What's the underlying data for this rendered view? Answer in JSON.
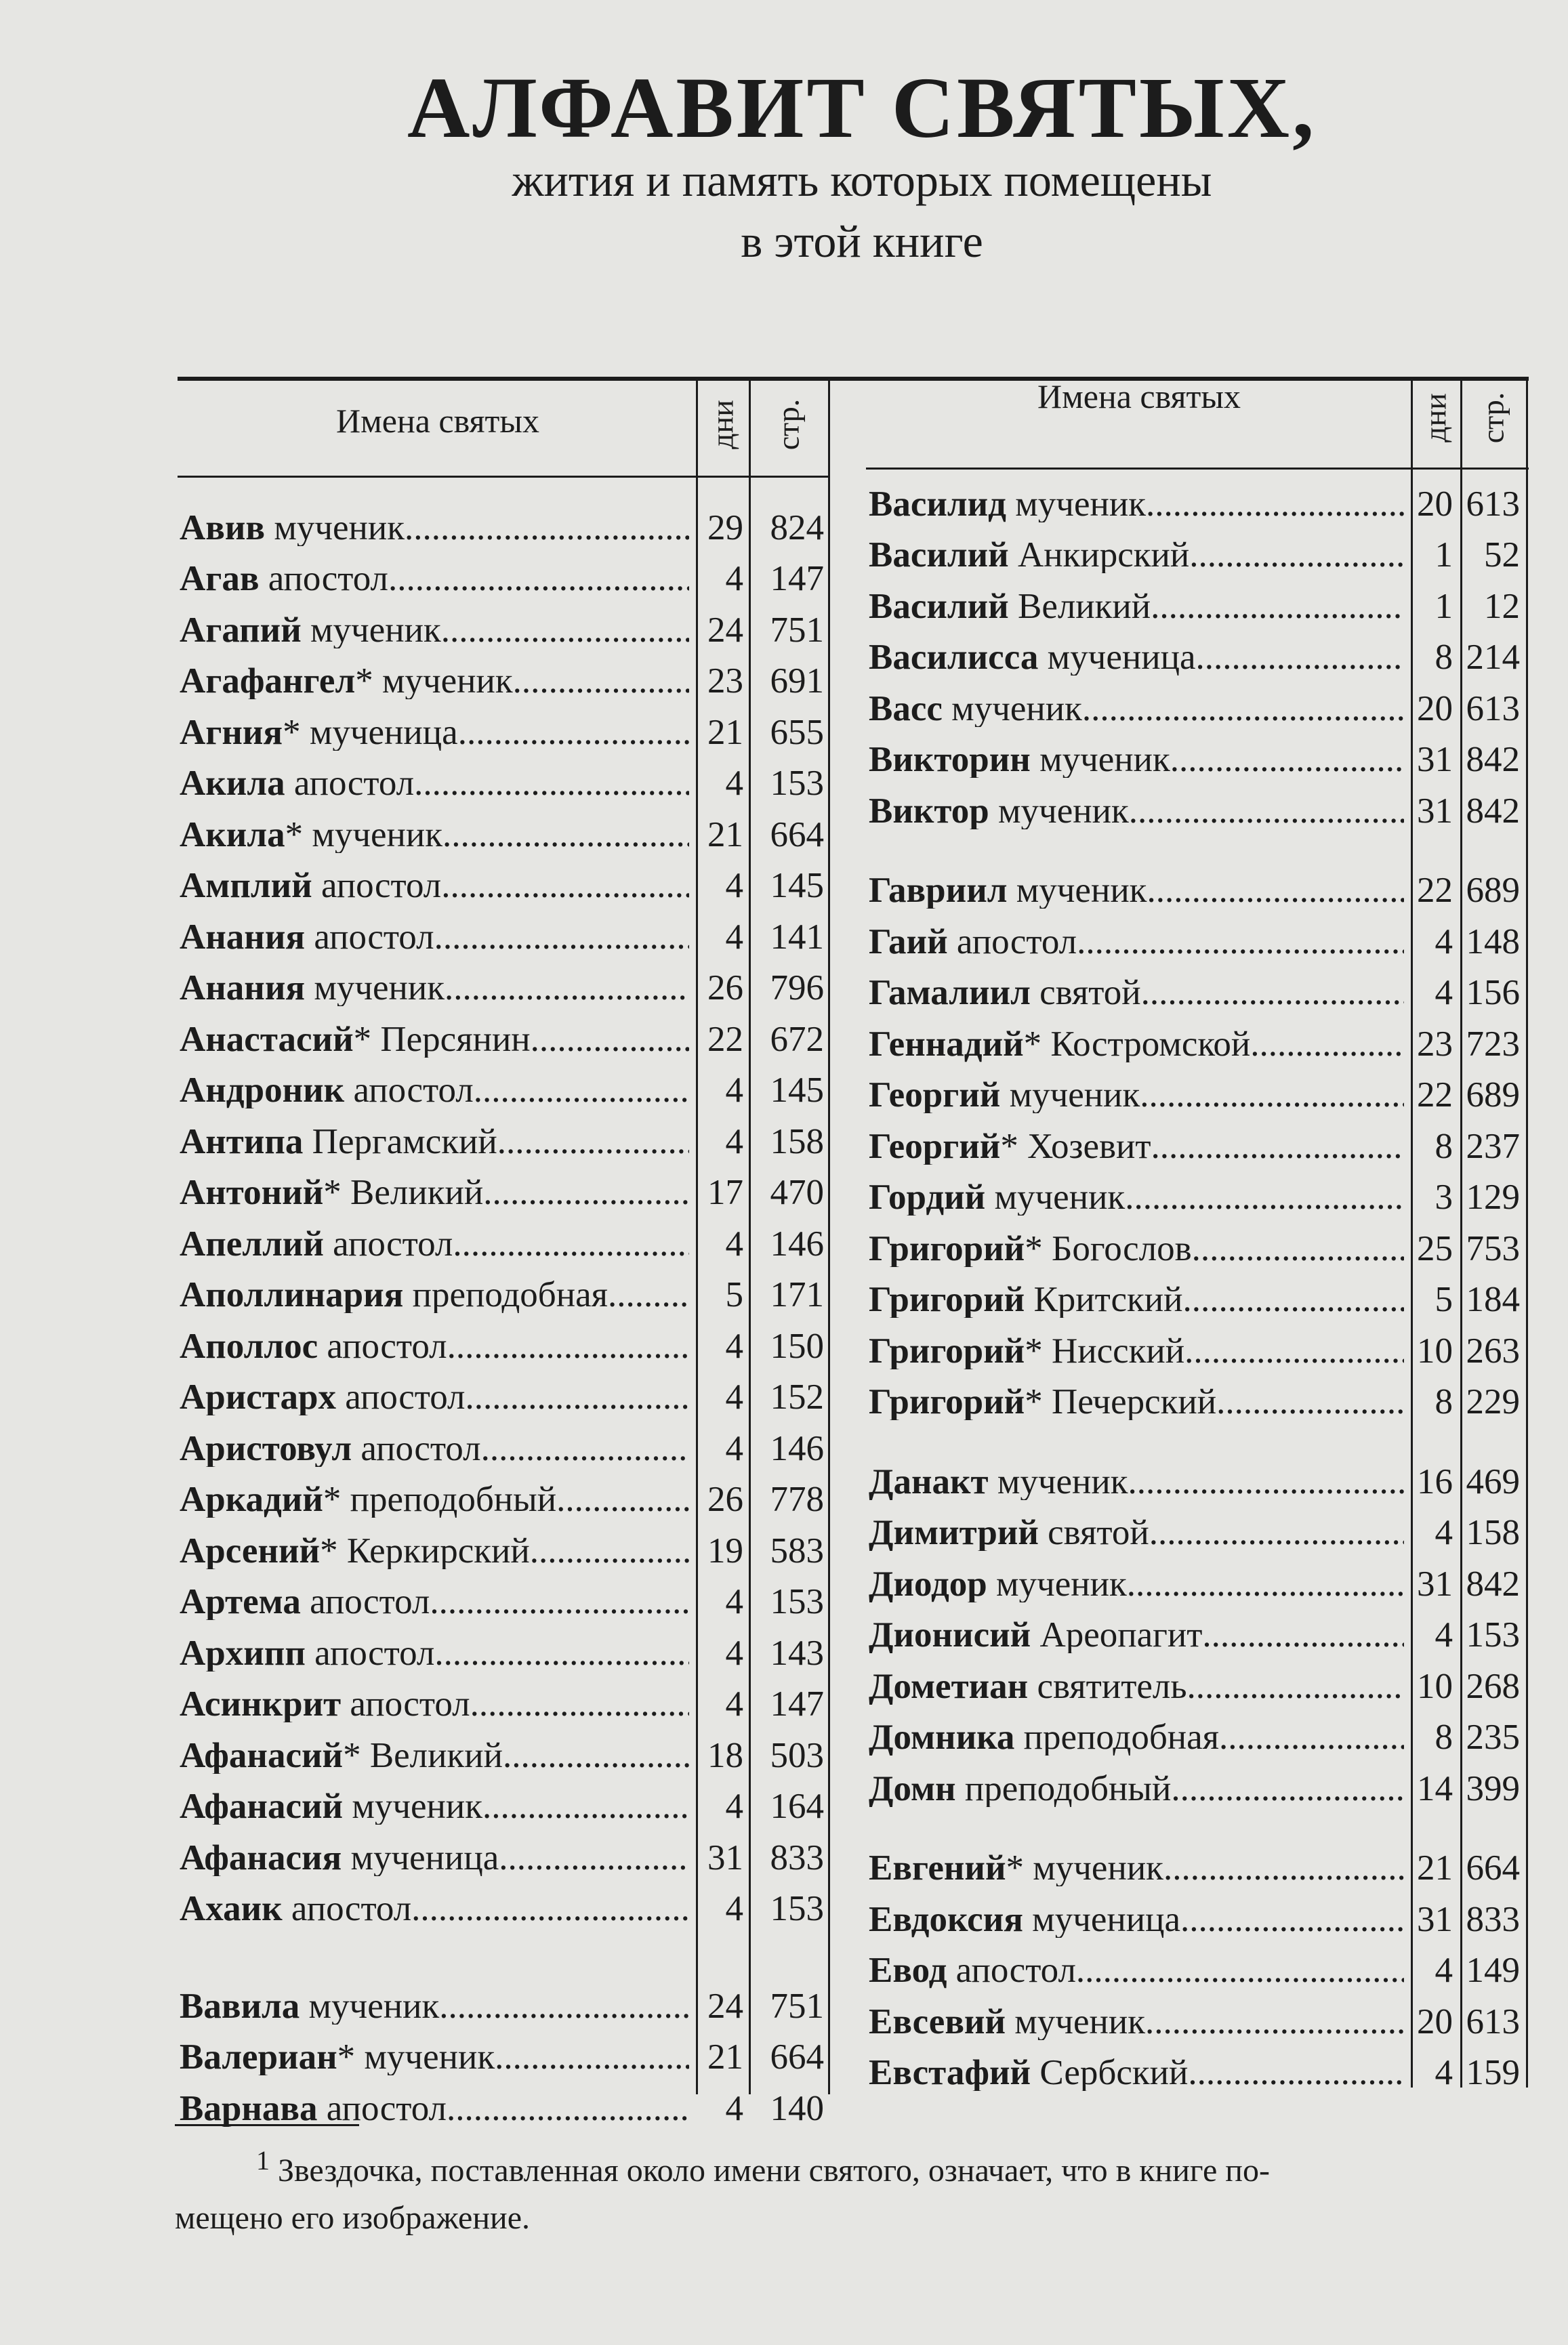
{
  "title": "АЛФАВИТ СВЯТЫХ,",
  "subtitle_line1": "жития и память которых помещены",
  "subtitle_line2": "в этой книге",
  "table_headers": {
    "name": "Имена святых",
    "day": "дни",
    "page": "стр."
  },
  "left_column": [
    [
      {
        "name": "Авив",
        "mark": "",
        "title": "мученик",
        "day": "29",
        "page": "824"
      },
      {
        "name": "Агав",
        "mark": "",
        "title": "апостол",
        "day": "4",
        "page": "147"
      },
      {
        "name": "Агапий",
        "mark": "",
        "title": "мученик",
        "day": "24",
        "page": "751"
      },
      {
        "name": "Агафангел",
        "mark": "*",
        "title": "мученик",
        "day": "23",
        "page": "691"
      },
      {
        "name": "Агния",
        "mark": "*",
        "title": "мученица",
        "day": "21",
        "page": "655"
      },
      {
        "name": "Акила",
        "mark": "",
        "title": "апостол",
        "day": "4",
        "page": "153"
      },
      {
        "name": "Акила",
        "mark": "*",
        "title": "мученик",
        "day": "21",
        "page": "664"
      },
      {
        "name": "Амплий",
        "mark": "",
        "title": "апостол",
        "day": "4",
        "page": "145"
      },
      {
        "name": "Анания",
        "mark": "",
        "title": "апостол",
        "day": "4",
        "page": "141"
      },
      {
        "name": "Анания",
        "mark": "",
        "title": "мученик",
        "day": "26",
        "page": "796"
      },
      {
        "name": "Анастасий",
        "mark": "*",
        "title": "Персянин",
        "day": "22",
        "page": "672"
      },
      {
        "name": "Андроник",
        "mark": "",
        "title": "апостол",
        "day": "4",
        "page": "145"
      },
      {
        "name": "Антипа",
        "mark": "",
        "title": "Пергамский",
        "day": "4",
        "page": "158"
      },
      {
        "name": "Антоний",
        "mark": "*",
        "title": "Великий",
        "day": "17",
        "page": "470"
      },
      {
        "name": "Апеллий",
        "mark": "",
        "title": "апостол",
        "day": "4",
        "page": "146"
      },
      {
        "name": "Аполлинария",
        "mark": "",
        "title": "преподобная",
        "day": "5",
        "page": "171"
      },
      {
        "name": "Аполлос",
        "mark": "",
        "title": "апостол",
        "day": "4",
        "page": "150"
      },
      {
        "name": "Аристарх",
        "mark": "",
        "title": "апостол",
        "day": "4",
        "page": "152"
      },
      {
        "name": "Аристовул",
        "mark": "",
        "title": "апостол",
        "day": "4",
        "page": "146"
      },
      {
        "name": "Аркадий",
        "mark": "*",
        "title": "преподобный",
        "day": "26",
        "page": "778"
      },
      {
        "name": "Арсений",
        "mark": "*",
        "title": "Керкирский",
        "day": "19",
        "page": "583"
      },
      {
        "name": "Артема",
        "mark": "",
        "title": "апостол",
        "day": "4",
        "page": "153"
      },
      {
        "name": "Архипп",
        "mark": "",
        "title": "апостол",
        "day": "4",
        "page": "143"
      },
      {
        "name": "Асинкрит",
        "mark": "",
        "title": "апостол",
        "day": "4",
        "page": "147"
      },
      {
        "name": "Афанасий",
        "mark": "*",
        "title": "Великий",
        "day": "18",
        "page": "503"
      },
      {
        "name": "Афанасий",
        "mark": "",
        "title": "мученик",
        "day": "4",
        "page": "164"
      },
      {
        "name": "Афанасия",
        "mark": "",
        "title": "мученица",
        "day": "31",
        "page": "833"
      },
      {
        "name": "Ахаик",
        "mark": "",
        "title": "апостол",
        "day": "4",
        "page": "153"
      }
    ],
    [
      {
        "name": "Вавила",
        "mark": "",
        "title": "мученик",
        "day": "24",
        "page": "751"
      },
      {
        "name": "Валериан",
        "mark": "*",
        "title": "мученик",
        "day": "21",
        "page": "664"
      },
      {
        "name": "Варнава",
        "mark": "",
        "title": "апостол",
        "day": "4",
        "page": "140"
      }
    ]
  ],
  "right_column": [
    [
      {
        "name": "Василид",
        "mark": "",
        "title": "мученик",
        "day": "20",
        "page": "613"
      },
      {
        "name": "Василий",
        "mark": "",
        "title": "Анкирский",
        "day": "1",
        "page": "52"
      },
      {
        "name": "Василий",
        "mark": "",
        "title": "Великий",
        "day": "1",
        "page": "12"
      },
      {
        "name": "Василисса",
        "mark": "",
        "title": "мученица",
        "day": "8",
        "page": "214"
      },
      {
        "name": "Васс",
        "mark": "",
        "title": "мученик",
        "day": "20",
        "page": "613"
      },
      {
        "name": "Викторин",
        "mark": "",
        "title": "мученик",
        "day": "31",
        "page": "842"
      },
      {
        "name": "Виктор",
        "mark": "",
        "title": "мученик",
        "day": "31",
        "page": "842"
      }
    ],
    [
      {
        "name": "Гавриил",
        "mark": "",
        "title": "мученик",
        "day": "22",
        "page": "689"
      },
      {
        "name": "Гаий",
        "mark": "",
        "title": "апостол",
        "day": "4",
        "page": "148"
      },
      {
        "name": "Гамалиил",
        "mark": "",
        "title": "святой",
        "day": "4",
        "page": "156"
      },
      {
        "name": "Геннадий",
        "mark": "*",
        "title": "Костромской",
        "day": "23",
        "page": "723"
      },
      {
        "name": "Георгий",
        "mark": "",
        "title": "мученик",
        "day": "22",
        "page": "689"
      },
      {
        "name": "Георгий",
        "mark": "*",
        "title": "Хозевит",
        "day": "8",
        "page": "237"
      },
      {
        "name": "Гордий",
        "mark": "",
        "title": "мученик",
        "day": "3",
        "page": "129"
      },
      {
        "name": "Григорий",
        "mark": "*",
        "title": "Богослов",
        "day": "25",
        "page": "753"
      },
      {
        "name": "Григорий",
        "mark": "",
        "title": "Критский",
        "day": "5",
        "page": "184"
      },
      {
        "name": "Григорий",
        "mark": "*",
        "title": "Нисский",
        "day": "10",
        "page": "263"
      },
      {
        "name": "Григорий",
        "mark": "*",
        "title": "Печерский",
        "day": "8",
        "page": "229"
      }
    ],
    [
      {
        "name": "Данакт",
        "mark": "",
        "title": "мученик",
        "day": "16",
        "page": "469"
      },
      {
        "name": "Димитрий",
        "mark": "",
        "title": "святой",
        "day": "4",
        "page": "158"
      },
      {
        "name": "Диодор",
        "mark": "",
        "title": "мученик",
        "day": "31",
        "page": "842"
      },
      {
        "name": "Дионисий",
        "mark": "",
        "title": "Ареопагит",
        "day": "4",
        "page": "153"
      },
      {
        "name": "Дометиан",
        "mark": "",
        "title": "святитель",
        "day": "10",
        "page": "268"
      },
      {
        "name": "Домника",
        "mark": "",
        "title": "преподобная",
        "day": "8",
        "page": "235"
      },
      {
        "name": "Домн",
        "mark": "",
        "title": "преподобный",
        "day": "14",
        "page": "399"
      }
    ],
    [
      {
        "name": "Евгений",
        "mark": "*",
        "title": "мученик",
        "day": "21",
        "page": "664"
      },
      {
        "name": "Евдоксия",
        "mark": "",
        "title": "мученица",
        "day": "31",
        "page": "833"
      },
      {
        "name": "Евод",
        "mark": "",
        "title": "апостол",
        "day": "4",
        "page": "149"
      },
      {
        "name": "Евсевий",
        "mark": "",
        "title": "мученик",
        "day": "20",
        "page": "613"
      },
      {
        "name": "Евстафий",
        "mark": "",
        "title": "Сербский",
        "day": "4",
        "page": "159"
      }
    ]
  ],
  "footnote": {
    "marker": "1",
    "line1": "Звездочка, поставленная около имени святого, означает, что в книге по-",
    "line2": "мещено его изображение."
  }
}
